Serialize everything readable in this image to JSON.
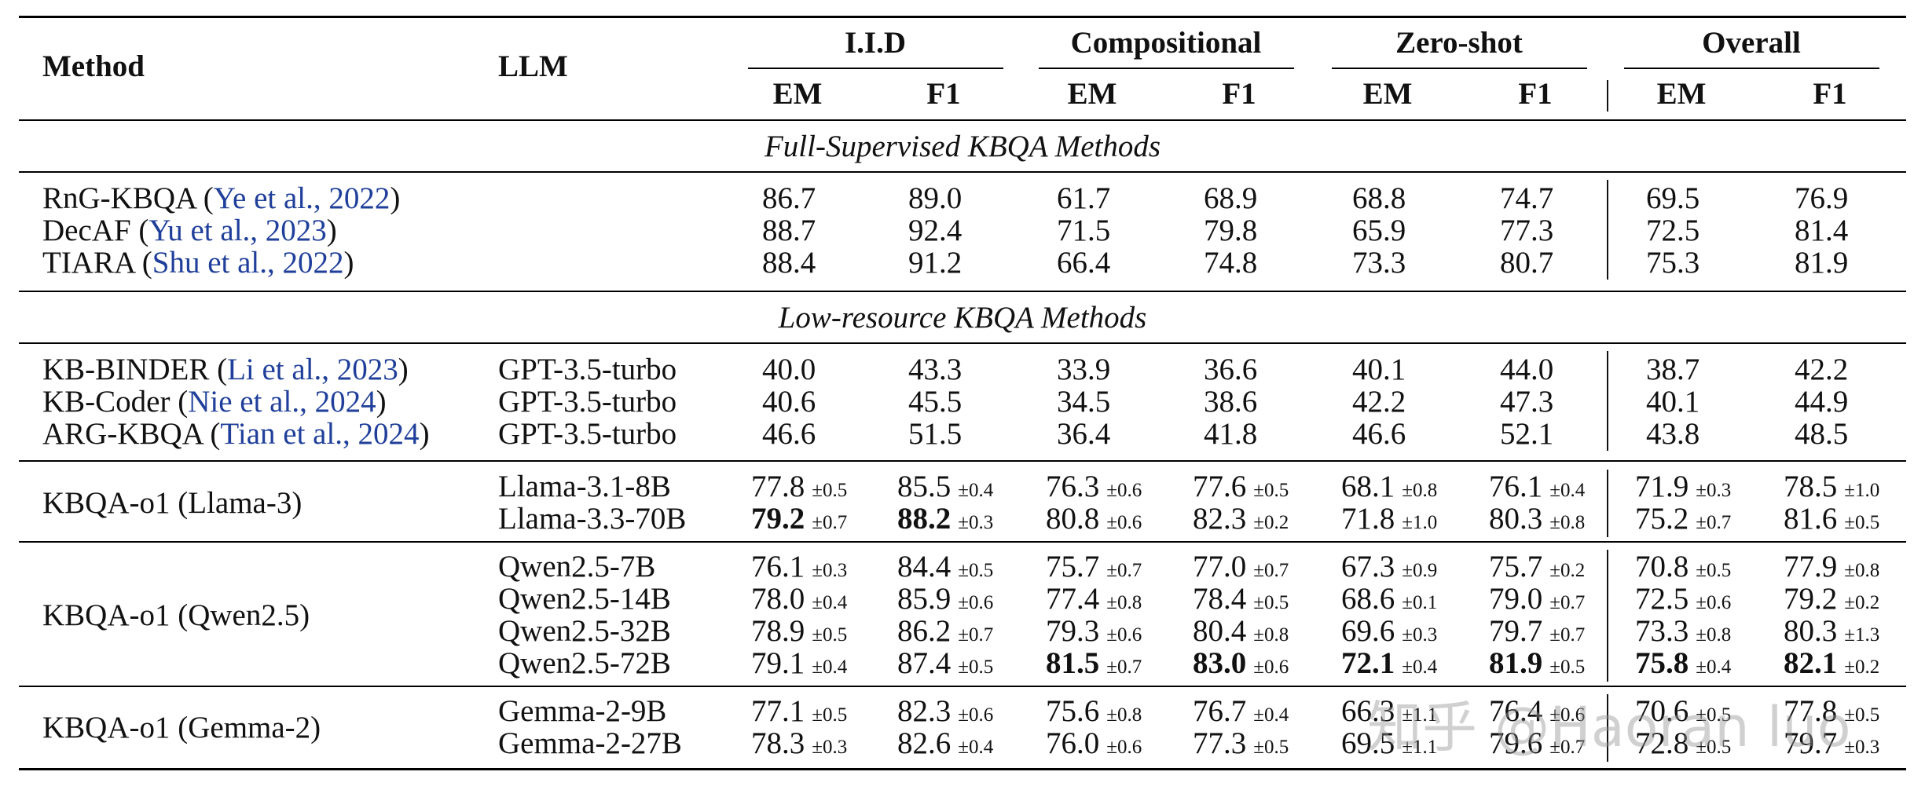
{
  "header": {
    "method": "Method",
    "llm": "LLM",
    "groups": [
      "I.I.D",
      "Compositional",
      "Zero-shot",
      "Overall"
    ],
    "metrics": [
      "EM",
      "F1",
      "EM",
      "F1",
      "EM",
      "F1",
      "EM",
      "F1"
    ]
  },
  "sections": {
    "full": "Full-Supervised KBQA Methods",
    "low": "Low-resource KBQA Methods"
  },
  "full_rows": [
    {
      "name": "RnG-KBQA",
      "cite": "Ye et al., 2022",
      "values": [
        "86.7",
        "89.0",
        "61.7",
        "68.9",
        "68.8",
        "74.7",
        "69.5",
        "76.9"
      ]
    },
    {
      "name": "DecAF",
      "cite": "Yu et al., 2023",
      "values": [
        "88.7",
        "92.4",
        "71.5",
        "79.8",
        "65.9",
        "77.3",
        "72.5",
        "81.4"
      ]
    },
    {
      "name": "TIARA",
      "cite": "Shu et al., 2022",
      "values": [
        "88.4",
        "91.2",
        "66.4",
        "74.8",
        "73.3",
        "80.7",
        "75.3",
        "81.9"
      ]
    }
  ],
  "low_rows": [
    {
      "name": "KB-BINDER",
      "cite": "Li et al., 2023",
      "llm": "GPT-3.5-turbo",
      "values": [
        "40.0",
        "43.3",
        "33.9",
        "36.6",
        "40.1",
        "44.0",
        "38.7",
        "42.2"
      ]
    },
    {
      "name": "KB-Coder",
      "cite": "Nie et al., 2024",
      "llm": "GPT-3.5-turbo",
      "values": [
        "40.6",
        "45.5",
        "34.5",
        "38.6",
        "42.2",
        "47.3",
        "40.1",
        "44.9"
      ]
    },
    {
      "name": "ARG-KBQA",
      "cite": "Tian et al., 2024",
      "llm": "GPT-3.5-turbo",
      "values": [
        "46.6",
        "51.5",
        "36.4",
        "41.8",
        "46.6",
        "52.1",
        "43.8",
        "48.5"
      ]
    }
  ],
  "ours": [
    {
      "method": "KBQA-o1 (Llama-3)",
      "rows": [
        {
          "llm": "Llama-3.1-8B",
          "cells": [
            [
              "77.8",
              "±0.5"
            ],
            [
              "85.5",
              "±0.4"
            ],
            [
              "76.3",
              "±0.6"
            ],
            [
              "77.6",
              "±0.5"
            ],
            [
              "68.1",
              "±0.8"
            ],
            [
              "76.1",
              "±0.4"
            ],
            [
              "71.9",
              "±0.3"
            ],
            [
              "78.5",
              "±1.0"
            ]
          ]
        },
        {
          "llm": "Llama-3.3-70B",
          "cells": [
            [
              "79.2",
              "±0.7"
            ],
            [
              "88.2",
              "±0.3"
            ],
            [
              "80.8",
              "±0.6"
            ],
            [
              "82.3",
              "±0.2"
            ],
            [
              "71.8",
              "±1.0"
            ],
            [
              "80.3",
              "±0.8"
            ],
            [
              "75.2",
              "±0.7"
            ],
            [
              "81.6",
              "±0.5"
            ]
          ]
        }
      ]
    },
    {
      "method": "KBQA-o1 (Qwen2.5)",
      "rows": [
        {
          "llm": "Qwen2.5-7B",
          "cells": [
            [
              "76.1",
              "±0.3"
            ],
            [
              "84.4",
              "±0.5"
            ],
            [
              "75.7",
              "±0.7"
            ],
            [
              "77.0",
              "±0.7"
            ],
            [
              "67.3",
              "±0.9"
            ],
            [
              "75.7",
              "±0.2"
            ],
            [
              "70.8",
              "±0.5"
            ],
            [
              "77.9",
              "±0.8"
            ]
          ]
        },
        {
          "llm": "Qwen2.5-14B",
          "cells": [
            [
              "78.0",
              "±0.4"
            ],
            [
              "85.9",
              "±0.6"
            ],
            [
              "77.4",
              "±0.8"
            ],
            [
              "78.4",
              "±0.5"
            ],
            [
              "68.6",
              "±0.1"
            ],
            [
              "79.0",
              "±0.7"
            ],
            [
              "72.5",
              "±0.6"
            ],
            [
              "79.2",
              "±0.2"
            ]
          ]
        },
        {
          "llm": "Qwen2.5-32B",
          "cells": [
            [
              "78.9",
              "±0.5"
            ],
            [
              "86.2",
              "±0.7"
            ],
            [
              "79.3",
              "±0.6"
            ],
            [
              "80.4",
              "±0.8"
            ],
            [
              "69.6",
              "±0.3"
            ],
            [
              "79.7",
              "±0.7"
            ],
            [
              "73.3",
              "±0.8"
            ],
            [
              "80.3",
              "±1.3"
            ]
          ]
        },
        {
          "llm": "Qwen2.5-72B",
          "cells": [
            [
              "79.1",
              "±0.4"
            ],
            [
              "87.4",
              "±0.5"
            ],
            [
              "81.5",
              "±0.7"
            ],
            [
              "83.0",
              "±0.6"
            ],
            [
              "72.1",
              "±0.4"
            ],
            [
              "81.9",
              "±0.5"
            ],
            [
              "75.8",
              "±0.4"
            ],
            [
              "82.1",
              "±0.2"
            ]
          ]
        }
      ]
    },
    {
      "method": "KBQA-o1 (Gemma-2)",
      "rows": [
        {
          "llm": "Gemma-2-9B",
          "cells": [
            [
              "77.1",
              "±0.5"
            ],
            [
              "82.3",
              "±0.6"
            ],
            [
              "75.6",
              "±0.8"
            ],
            [
              "76.7",
              "±0.4"
            ],
            [
              "66.3",
              "±1.1"
            ],
            [
              "76.4",
              "±0.6"
            ],
            [
              "70.6",
              "±0.5"
            ],
            [
              "77.8",
              "±0.5"
            ]
          ]
        },
        {
          "llm": "Gemma-2-27B",
          "cells": [
            [
              "78.3",
              "±0.3"
            ],
            [
              "82.6",
              "±0.4"
            ],
            [
              "76.0",
              "±0.6"
            ],
            [
              "77.3",
              "±0.5"
            ],
            [
              "69.5",
              "±1.1"
            ],
            [
              "79.6",
              "±0.7"
            ],
            [
              "72.8",
              "±0.5"
            ],
            [
              "79.7",
              "±0.3"
            ]
          ]
        }
      ]
    }
  ],
  "bold": [
    "ours.0.rows.1.cells.0",
    "ours.0.rows.1.cells.1",
    "ours.1.rows.3.cells.2",
    "ours.1.rows.3.cells.3",
    "ours.1.rows.3.cells.4",
    "ours.1.rows.3.cells.5",
    "ours.1.rows.3.cells.6",
    "ours.1.rows.3.cells.7"
  ],
  "watermark": "知乎 @Haoran luo"
}
